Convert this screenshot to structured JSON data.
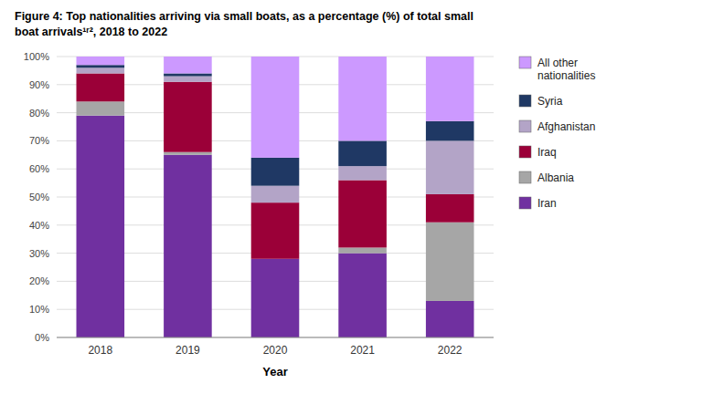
{
  "chart_data": {
    "type": "bar",
    "stacked": true,
    "title": "Figure 4: Top nationalities arriving via small boats, as a percentage (%) of total small\nboat arrivals¹ʳ², 2018 to 2022",
    "x_label": "Year",
    "categories": [
      "2018",
      "2019",
      "2020",
      "2021",
      "2022"
    ],
    "series": [
      {
        "name": "Iran",
        "color": "#7030a0",
        "values": [
          79,
          65,
          28,
          30,
          13
        ]
      },
      {
        "name": "Albania",
        "color": "#a6a6a6",
        "values": [
          5,
          1,
          0,
          2,
          28
        ]
      },
      {
        "name": "Iraq",
        "color": "#9b0038",
        "values": [
          10,
          25,
          20,
          24,
          10
        ]
      },
      {
        "name": "Afghanistan",
        "color": "#b3a4c7",
        "values": [
          2,
          2,
          6,
          5,
          19
        ]
      },
      {
        "name": "Syria",
        "color": "#1f3864",
        "values": [
          1,
          1,
          10,
          9,
          7
        ]
      },
      {
        "name": "All other\nnationalities",
        "color": "#cc99ff",
        "values": [
          3,
          6,
          36,
          30,
          23
        ]
      }
    ],
    "ylim": [
      0,
      100
    ],
    "yticks": [
      {
        "value": 0,
        "label": "0%"
      },
      {
        "value": 10,
        "label": "10%"
      },
      {
        "value": 20,
        "label": "20%"
      },
      {
        "value": 30,
        "label": "30%"
      },
      {
        "value": 40,
        "label": "40%"
      },
      {
        "value": 50,
        "label": "50%"
      },
      {
        "value": 60,
        "label": "60%"
      },
      {
        "value": 70,
        "label": "70%"
      },
      {
        "value": 80,
        "label": "80%"
      },
      {
        "value": 90,
        "label": "90%"
      },
      {
        "value": 100,
        "label": "100%"
      }
    ],
    "grid": true,
    "legend": "right"
  }
}
